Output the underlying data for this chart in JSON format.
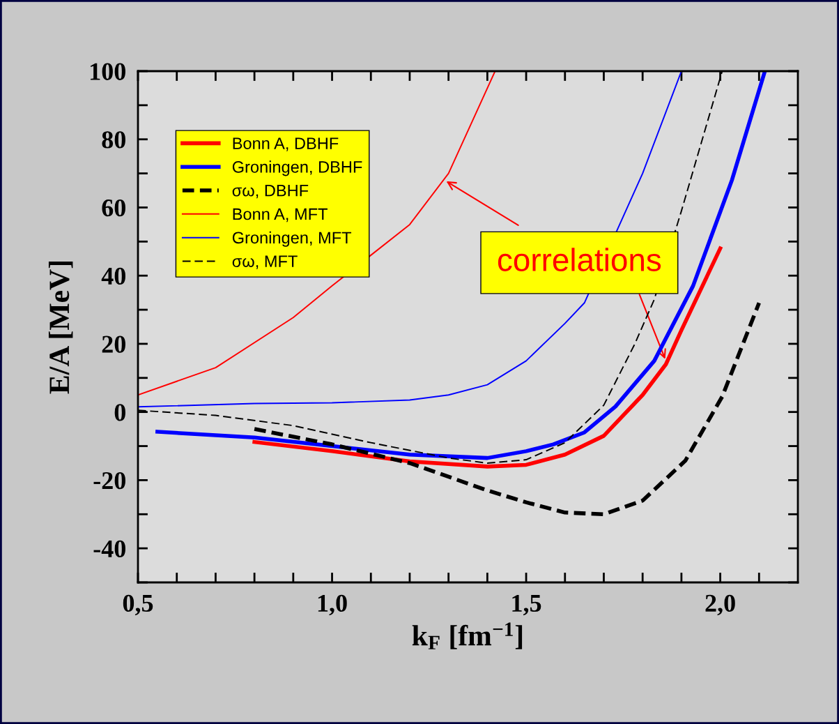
{
  "chart_data": {
    "type": "line",
    "xlabel": "k$_{F}$ [fm$^{−1}$]",
    "ylabel": "E/A [MeV]",
    "xlim": [
      0.5,
      2.2
    ],
    "ylim": [
      -50,
      100
    ],
    "xticks": [
      {
        "value": 0.5,
        "label": "0,5"
      },
      {
        "value": 0.6,
        "label": null
      },
      {
        "value": 0.7,
        "label": null
      },
      {
        "value": 0.8,
        "label": null
      },
      {
        "value": 0.9,
        "label": null
      },
      {
        "value": 1.0,
        "label": "1,0"
      },
      {
        "value": 1.1,
        "label": null
      },
      {
        "value": 1.2,
        "label": null
      },
      {
        "value": 1.3,
        "label": null
      },
      {
        "value": 1.4,
        "label": null
      },
      {
        "value": 1.5,
        "label": "1,5"
      },
      {
        "value": 1.6,
        "label": null
      },
      {
        "value": 1.7,
        "label": null
      },
      {
        "value": 1.8,
        "label": null
      },
      {
        "value": 1.9,
        "label": null
      },
      {
        "value": 2.0,
        "label": "2,0"
      },
      {
        "value": 2.1,
        "label": null
      }
    ],
    "yticks": [
      {
        "value": -50,
        "label": null
      },
      -40,
      {
        "value": -30,
        "label": null
      },
      -20,
      {
        "value": -10,
        "label": null
      },
      0,
      {
        "value": 10,
        "label": null
      },
      20,
      {
        "value": 30,
        "label": null
      },
      40,
      {
        "value": 50,
        "label": null
      },
      60,
      {
        "value": 70,
        "label": null
      },
      80,
      {
        "value": 90,
        "label": null
      },
      100
    ],
    "legend": "top left",
    "grid": false,
    "annotations": [
      {
        "text": "correlations",
        "x": 1.29,
        "y": 68
      }
    ],
    "series": [
      {
        "name": "Bonn A, DBHF",
        "color": "#ff0000",
        "line_style": "solid",
        "x": [
          0.8,
          1.0,
          1.2,
          1.4,
          1.5,
          1.6,
          1.7,
          1.8,
          1.86,
          1.9,
          2.0
        ],
        "values": [
          -8.8,
          -11.5,
          -14.5,
          -16,
          -15.5,
          -12.5,
          -7,
          5,
          14,
          24,
          48
        ]
      },
      {
        "name": "Groningen, DBHF",
        "color": "#0000ff",
        "line_style": "solid",
        "x": [
          0.55,
          0.8,
          1.0,
          1.2,
          1.4,
          1.5,
          1.57,
          1.65,
          1.73,
          1.83,
          1.93,
          2.03,
          2.115
        ],
        "values": [
          -5.8,
          -7.5,
          -10,
          -12.5,
          -13.5,
          -11.5,
          -9.5,
          -6,
          1.6,
          15,
          37,
          68,
          100
        ]
      },
      {
        "name": "σω, DBHF",
        "color": "#000000",
        "line_style": "dashed",
        "x": [
          0.8,
          1.0,
          1.2,
          1.4,
          1.5,
          1.6,
          1.7,
          1.8,
          1.91,
          2.005,
          2.1
        ],
        "values": [
          -5,
          -9.5,
          -15,
          -23,
          -26.5,
          -29.5,
          -30,
          -26,
          -14.3,
          4.5,
          32
        ]
      },
      {
        "name": "Bonn A, MFT",
        "color": "#ff0000",
        "line_style": "solid",
        "x": [
          0.5,
          0.7,
          0.9,
          1.0,
          1.1,
          1.2,
          1.3,
          1.42
        ],
        "values": [
          5,
          13,
          27.7,
          37,
          46,
          55,
          70,
          100
        ]
      },
      {
        "name": "Groningen, MFT",
        "color": "#0000ff",
        "line_style": "solid",
        "x": [
          0.5,
          0.8,
          1.0,
          1.2,
          1.3,
          1.4,
          1.5,
          1.6,
          1.65,
          1.8,
          1.9
        ],
        "values": [
          1.5,
          2.5,
          2.7,
          3.5,
          5,
          8,
          15,
          26,
          32,
          70,
          100
        ]
      },
      {
        "name": "σω, MFT",
        "color": "#000000",
        "line_style": "dashed",
        "x": [
          0.5,
          0.7,
          0.9,
          1.1,
          1.3,
          1.4,
          1.5,
          1.6,
          1.7,
          1.78,
          1.83,
          1.9,
          2.005
        ],
        "values": [
          0.5,
          -1,
          -4,
          -9,
          -13.5,
          -15,
          -14,
          -9,
          2,
          20,
          33,
          59,
          100
        ]
      }
    ]
  }
}
